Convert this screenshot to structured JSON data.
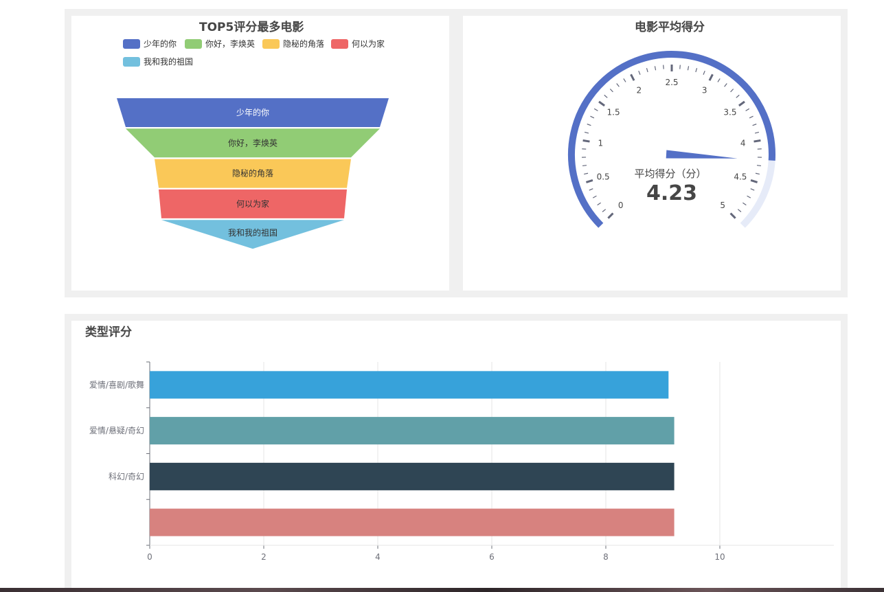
{
  "funnel": {
    "title": "TOP5评分最多电影",
    "chart_data": {
      "type": "funnel",
      "title": "TOP5评分最多电影",
      "categories": [
        "少年的你",
        "你好，李焕英",
        "隐秘的角落",
        "何以为家",
        "我和我的祖国"
      ],
      "colors": [
        "#5470c6",
        "#91cc75",
        "#fac858",
        "#ee6666",
        "#73c0de"
      ],
      "legend_position": "top"
    }
  },
  "gauge": {
    "title": "电影平均得分",
    "value_label": "平均得分（分）",
    "value_text": "4.23",
    "chart_data": {
      "type": "gauge",
      "value": 4.23,
      "min": 0,
      "max": 5,
      "tick_labels": [
        "0",
        "0.5",
        "1",
        "1.5",
        "2",
        "2.5",
        "3",
        "3.5",
        "4",
        "4.5",
        "5"
      ],
      "progress_color": "#5470c6",
      "track_color": "#e6ebf8"
    }
  },
  "bar": {
    "title": "类型评分",
    "chart_data": {
      "type": "bar",
      "orientation": "horizontal",
      "categories": [
        "爱情/喜剧/歌舞",
        "爱情/悬疑/奇幻",
        "科幻/奇幻",
        ""
      ],
      "values": [
        9.1,
        9.2,
        9.2,
        9.2
      ],
      "colors": [
        "#37a2da",
        "#61a0a8",
        "#2f4554",
        "#d7827f"
      ],
      "xlim": [
        0,
        12
      ],
      "x_ticks": [
        "0",
        "2",
        "4",
        "6",
        "8",
        "10"
      ],
      "grid": true
    }
  }
}
